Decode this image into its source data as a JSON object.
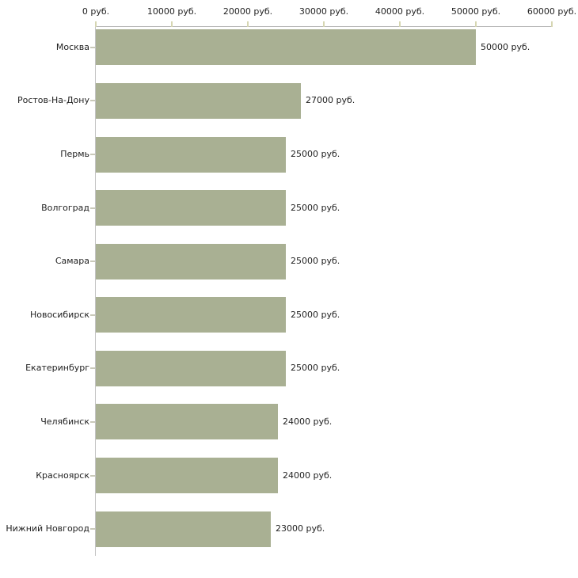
{
  "chart_data": {
    "type": "bar",
    "orientation": "horizontal",
    "title": "",
    "unit": "руб.",
    "categories": [
      "Москва",
      "Ростов-На-Дону",
      "Пермь",
      "Волгоград",
      "Самара",
      "Новосибирск",
      "Екатеринбург",
      "Челябинск",
      "Красноярск",
      "Нижний Новгород"
    ],
    "values": [
      50000,
      27000,
      25000,
      25000,
      25000,
      25000,
      25000,
      24000,
      24000,
      23000
    ],
    "value_labels": [
      "50000 руб.",
      "27000 руб.",
      "25000 руб.",
      "25000 руб.",
      "25000 руб.",
      "25000 руб.",
      "25000 руб.",
      "24000 руб.",
      "24000 руб.",
      "23000 руб."
    ],
    "x_axis": {
      "position": "top",
      "range": [
        0,
        60000
      ],
      "ticks": [
        0,
        10000,
        20000,
        30000,
        40000,
        50000,
        60000
      ],
      "tick_labels": [
        "0 руб.",
        "10000 руб.",
        "20000 руб.",
        "30000 руб.",
        "40000 руб.",
        "50000 руб.",
        "60000 руб."
      ]
    },
    "grid": false,
    "legend": false,
    "colors": {
      "bar": "#a9b093",
      "axis_line_horizontal": "#b9b9b9",
      "axis_line_vertical": "#c3c3c3",
      "axis_tick": "#d6d6b2",
      "category_tick": "#c9c9b9",
      "text": "#1f1f1f",
      "background": "#ffffff"
    }
  }
}
